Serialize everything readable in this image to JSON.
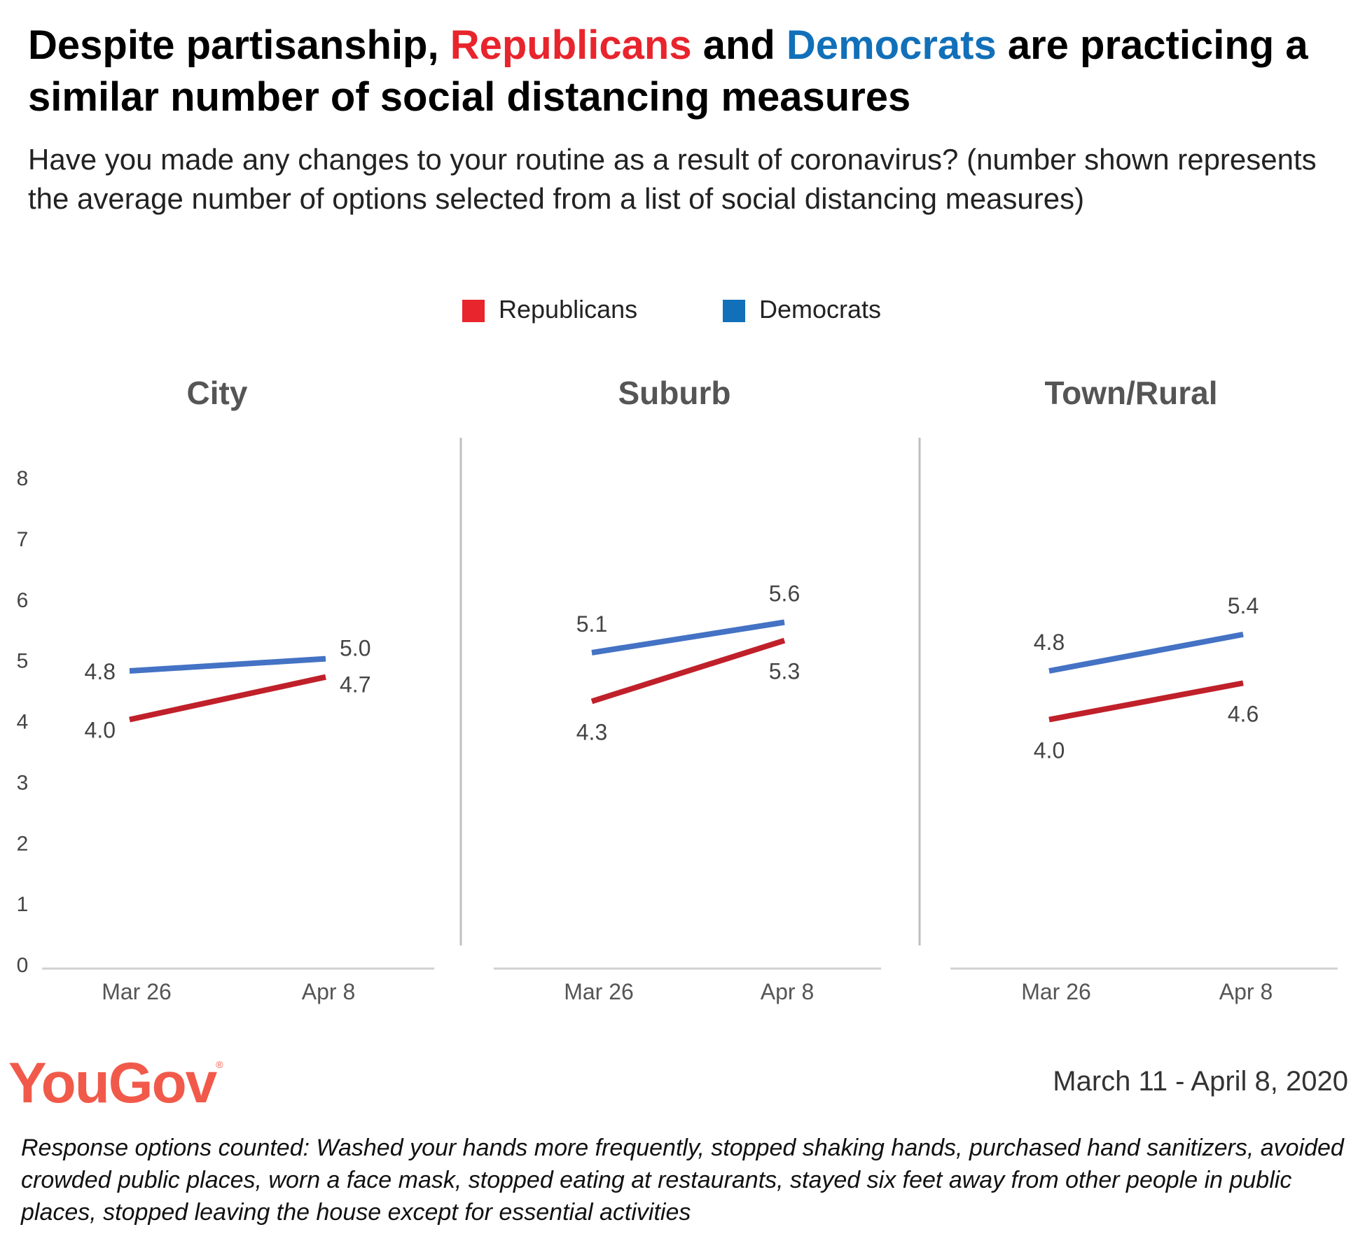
{
  "title": {
    "part1": "Despite partisanship, ",
    "republicans": "Republicans",
    "part2": " and ",
    "democrats": "Democrats",
    "part3": " are practicing a similar number of social distancing measures"
  },
  "subtitle": "Have you made any changes to your routine as a result of coronavirus? (number shown represents the average number of options selected from a list of social distancing measures)",
  "colors": {
    "republicans_legend": "#e8242c",
    "democrats_legend": "#1170b9",
    "republicans_line": "#c0202a",
    "democrats_line": "#4472c4",
    "logo": "#f15a4a"
  },
  "chart_data": {
    "type": "line",
    "legend": [
      "Republicans",
      "Democrats"
    ],
    "legend_placement": "top-center",
    "categories": [
      "Mar 26",
      "Apr 8"
    ],
    "y_ticks": [
      "0",
      "1",
      "2",
      "3",
      "4",
      "5",
      "6",
      "7",
      "8"
    ],
    "ylim": [
      0,
      8
    ],
    "grid": false,
    "panels": [
      {
        "title": "City",
        "series": [
          {
            "name": "Republicans",
            "values": [
              4.0,
              4.7
            ],
            "labels": [
              "4.0",
              "4.7"
            ]
          },
          {
            "name": "Democrats",
            "values": [
              4.8,
              5.0
            ],
            "labels": [
              "4.8",
              "5.0"
            ]
          }
        ]
      },
      {
        "title": "Suburb",
        "series": [
          {
            "name": "Republicans",
            "values": [
              4.3,
              5.3
            ],
            "labels": [
              "4.3",
              "5.3"
            ]
          },
          {
            "name": "Democrats",
            "values": [
              5.1,
              5.6
            ],
            "labels": [
              "5.1",
              "5.6"
            ]
          }
        ]
      },
      {
        "title": "Town/Rural",
        "series": [
          {
            "name": "Republicans",
            "values": [
              4.0,
              4.6
            ],
            "labels": [
              "4.0",
              "4.6"
            ]
          },
          {
            "name": "Democrats",
            "values": [
              4.8,
              5.4
            ],
            "labels": [
              "4.8",
              "5.4"
            ]
          }
        ]
      }
    ]
  },
  "logo": {
    "text": "YouGov",
    "mark": "®"
  },
  "date_range": "March 11 - April 8, 2020",
  "footnote": "Response options counted: Washed your hands more frequently, stopped shaking hands, purchased hand sanitizers, avoided crowded public places, worn a face mask, stopped eating at restaurants, stayed six feet away from other people in public places, stopped leaving the house except for essential activities"
}
